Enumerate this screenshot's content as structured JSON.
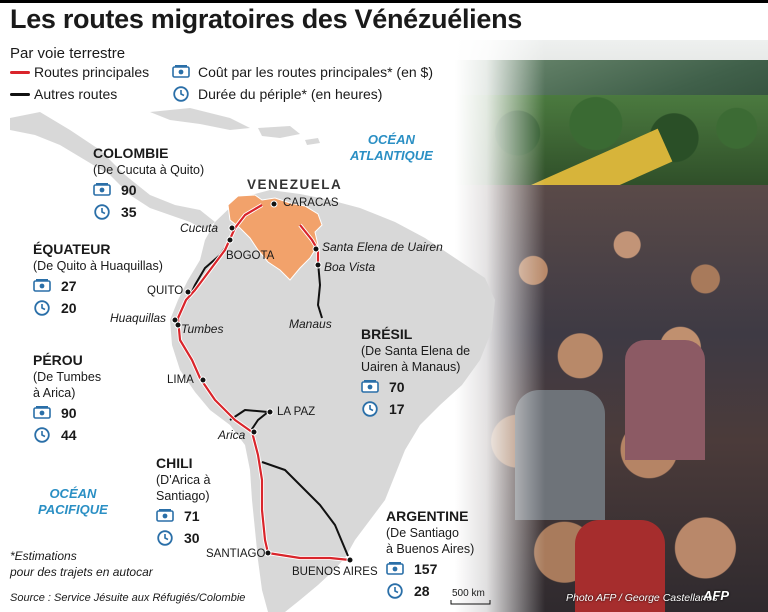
{
  "title": "Les routes migratoires des Vénézuéliens",
  "subtitle": "Par voie terrestre",
  "legend": {
    "main_routes": "Routes principales",
    "other_routes": "Autres routes",
    "cost": "Coût par les routes principales* (en $)",
    "duration": "Durée du périple* (en heures)",
    "colors": {
      "main": "#d9252b",
      "other": "#111111",
      "venezuela": "#f2a26b",
      "land": "#d8d8d8",
      "ocean_text": "#2a8fc4",
      "icon": "#2a6fa8"
    },
    "icons": {
      "cost": "money-icon",
      "duration": "clock-icon"
    }
  },
  "countries": [
    {
      "name": "COLOMBIE",
      "desc": [
        "(De Cucuta à Quito)"
      ],
      "cost": "90",
      "hours": "35"
    },
    {
      "name": "ÉQUATEUR",
      "desc": [
        "(De Quito à Huaquillas)"
      ],
      "cost": "27",
      "hours": "20"
    },
    {
      "name": "PÉROU",
      "desc": [
        "(De Tumbes",
        "à Arica)"
      ],
      "cost": "90",
      "hours": "44"
    },
    {
      "name": "CHILI",
      "desc": [
        "(D'Arica à",
        "Santiago)"
      ],
      "cost": "71",
      "hours": "30"
    },
    {
      "name": "BRÉSIL",
      "desc": [
        "(De Santa Elena de",
        "Uairen à Manaus)"
      ],
      "cost": "70",
      "hours": "17"
    },
    {
      "name": "ARGENTINE",
      "desc": [
        "(De Santiago",
        "à Buenos Aires)"
      ],
      "cost": "157",
      "hours": "28"
    }
  ],
  "oceans": {
    "atlantic": [
      "OCÉAN",
      "ATLANTIQUE"
    ],
    "pacific": [
      "OCÉAN",
      "PACIFIQUE"
    ]
  },
  "map": {
    "venezuela": "VENEZUELA",
    "cities": {
      "caracas": "CARACAS",
      "cucuta": "Cucuta",
      "bogota": "BOGOTA",
      "quito": "QUITO",
      "huaquillas": "Huaquillas",
      "tumbes": "Tumbes",
      "lima": "LIMA",
      "la_paz": "LA PAZ",
      "arica": "Arica",
      "santiago": "SANTIAGO",
      "buenos_aires": "BUENOS AIRES",
      "santa_elena": "Santa Elena de Uairen",
      "boa_vista": "Boa Vista",
      "manaus": "Manaus"
    },
    "scale": "500 km"
  },
  "footnote": [
    "*Estimations",
    "pour des trajets en autocar"
  ],
  "source": "Source : Service Jésuite aux Réfugiés/Colombie",
  "credit": "Photo AFP / George Castellanos",
  "agency": "AFP"
}
